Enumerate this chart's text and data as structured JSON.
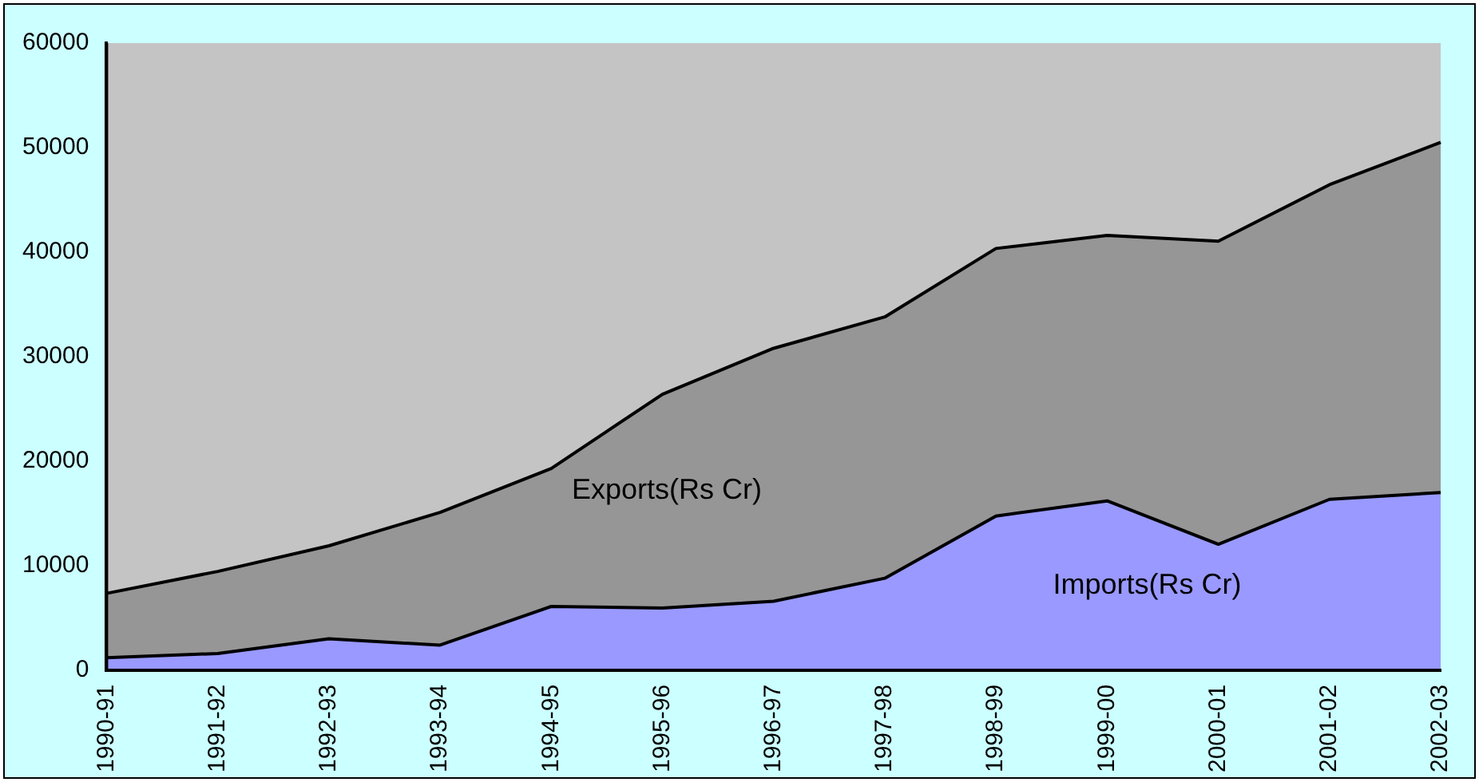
{
  "chart_data": {
    "type": "area",
    "categories": [
      "1990-91",
      "1991-92",
      "1992-93",
      "1993-94",
      "1994-95",
      "1995-96",
      "1996-97",
      "1997-98",
      "1998-99",
      "1999-00",
      "2000-01",
      "2001-02",
      "2002-03"
    ],
    "series": [
      {
        "name": "Exports(Rs Cr)",
        "color": "#969696",
        "values": [
          7350,
          9450,
          11900,
          15100,
          19300,
          26400,
          30800,
          33800,
          40350,
          41600,
          41050,
          46450,
          50500
        ]
      },
      {
        "name": "Imports(Rs Cr)",
        "color": "#9999ff",
        "values": [
          1200,
          1600,
          3000,
          2400,
          6100,
          5950,
          6600,
          8800,
          14750,
          16200,
          12050,
          16350,
          17000
        ]
      }
    ],
    "ylim": [
      0,
      60000
    ],
    "yticks": [
      0,
      10000,
      20000,
      30000,
      40000,
      50000,
      60000
    ],
    "grid": false,
    "legend": false
  }
}
